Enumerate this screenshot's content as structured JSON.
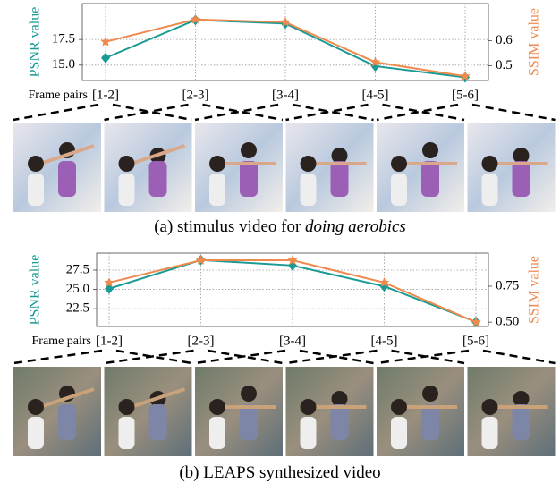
{
  "chart_data": [
    {
      "type": "line",
      "x_label": "Frame pairs",
      "ylabel": "PSNR value",
      "y2label": "SSIM value",
      "caption": [
        "(a) stimulus video for ",
        "doing aerobics"
      ],
      "categories": [
        "[1-2]",
        "[2-3]",
        "[3-4]",
        "[4-5]",
        "[5-6]"
      ],
      "series": [
        {
          "color": "#1a9a94",
          "marker": "diamond",
          "values": [
            15.7,
            19.4,
            19.05,
            14.9,
            13.8
          ]
        },
        {
          "color": "#ee8a4e",
          "marker": "star",
          "axis": "y2",
          "values": [
            0.596,
            0.686,
            0.675,
            0.514,
            0.457
          ]
        }
      ],
      "ylim": [
        13.5,
        21
      ],
      "yticks": [
        {
          "value": 15,
          "label": "15.0"
        },
        17.5
      ],
      "y2lim": [
        0.44,
        0.75
      ],
      "y2ticks": [
        0.5,
        0.6
      ],
      "grid": true
    },
    {
      "type": "line",
      "x_label": "Frame pairs",
      "ylabel": "PSNR value",
      "y2label": "SSIM value",
      "caption": [
        "(b) LEAPS synthesized video"
      ],
      "categories": [
        "[1-2]",
        "[2-3]",
        "[3-4]",
        "[4-5]",
        "[5-6]"
      ],
      "series": [
        {
          "color": "#1a9a94",
          "marker": "diamond",
          "values": [
            25.1,
            28.8,
            28.1,
            25.4,
            20.8
          ]
        },
        {
          "color": "#ee8a4e",
          "marker": "star",
          "axis": "y2",
          "values": [
            0.775,
            0.93,
            0.93,
            0.775,
            0.5
          ]
        }
      ],
      "ylim": [
        20.2,
        29.7
      ],
      "yticks": [
        22.5,
        {
          "value": 25,
          "label": "25.0"
        },
        27.5
      ],
      "y2lim": [
        0.47,
        0.98
      ],
      "y2ticks": [
        {
          "value": 0.5,
          "label": "0.50"
        },
        0.75
      ],
      "grid": true
    }
  ]
}
